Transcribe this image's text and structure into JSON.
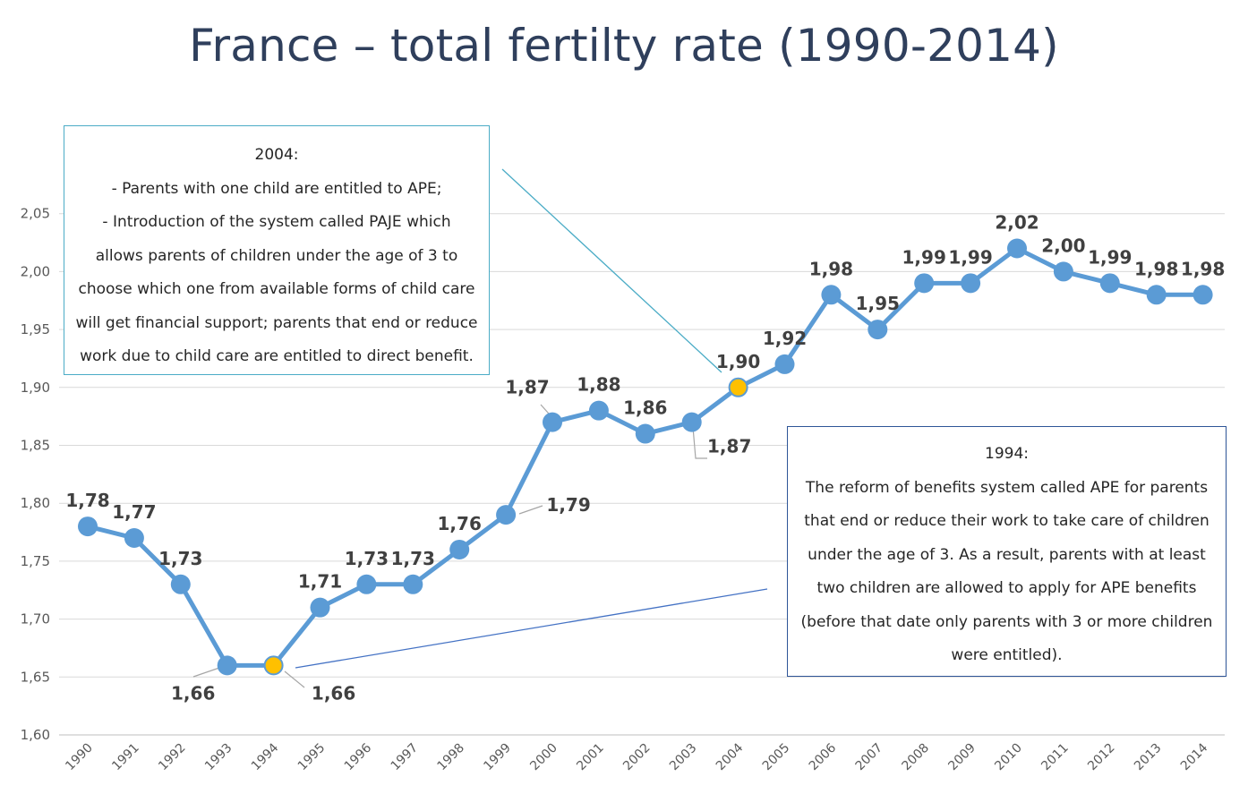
{
  "chart_data": {
    "type": "line",
    "title": "France – total fertilty rate (1990-2014)",
    "xlabel": "",
    "ylabel": "",
    "ylim": [
      1.6,
      2.08
    ],
    "yticks": [
      "1,60",
      "1,65",
      "1,70",
      "1,75",
      "1,80",
      "1,85",
      "1,90",
      "1,95",
      "2,00",
      "2,05"
    ],
    "ytick_values": [
      1.6,
      1.65,
      1.7,
      1.75,
      1.8,
      1.85,
      1.9,
      1.95,
      2.0,
      2.05
    ],
    "categories": [
      "1990",
      "1991",
      "1992",
      "1993",
      "1994",
      "1995",
      "1996",
      "1997",
      "1998",
      "1999",
      "2000",
      "2001",
      "2002",
      "2003",
      "2004",
      "2005",
      "2006",
      "2007",
      "2008",
      "2009",
      "2010",
      "2011",
      "2012",
      "2013",
      "2014"
    ],
    "series": [
      {
        "name": "Total fertility rate",
        "values": [
          1.78,
          1.77,
          1.73,
          1.66,
          1.66,
          1.71,
          1.73,
          1.73,
          1.76,
          1.79,
          1.87,
          1.88,
          1.86,
          1.87,
          1.9,
          1.92,
          1.98,
          1.95,
          1.99,
          1.99,
          2.02,
          2.0,
          1.99,
          1.98,
          1.98
        ],
        "labels": [
          "1,78",
          "1,77",
          "1,73",
          "1,66",
          "1,66",
          "1,71",
          "1,73",
          "1,73",
          "1,76",
          "1,79",
          "1,87",
          "1,88",
          "1,86",
          "1,87",
          "1,90",
          "1,92",
          "1,98",
          "1,95",
          "1,99",
          "1,99",
          "2,02",
          "2,00",
          "1,99",
          "1,98",
          "1,98"
        ],
        "color": "#5b9bd5"
      }
    ],
    "highlighted_categories": [
      "1994",
      "2004"
    ],
    "highlight_color": "#ffc000",
    "gridlines": true
  },
  "annotations": {
    "note_2004": {
      "title": "2004:",
      "lines": [
        "- Parents with one child are entitled to APE;",
        "- Introduction of the system called PAJE which",
        "allows parents of children under the age of 3 to",
        "choose which one from available forms of child care",
        "will get financial support; parents that end or reduce",
        "work due to child care are entitled to direct benefit."
      ],
      "border_color": "#4bacc6"
    },
    "note_1994": {
      "title": "1994:",
      "lines": [
        "The reform of benefits system called APE for parents",
        "that end or reduce their work to take care of children",
        "under the age of 3. As a result, parents with at least",
        "two children are allowed to apply for APE benefits",
        "(before that date only parents with 3 or more children",
        "were entitled)."
      ],
      "border_color": "#2e5597"
    }
  }
}
